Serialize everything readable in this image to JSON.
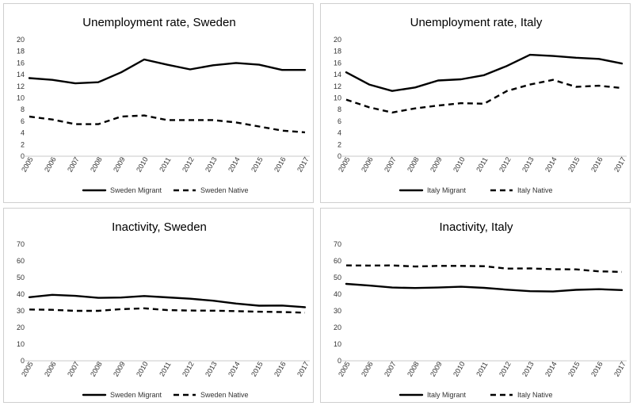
{
  "chart_data": [
    {
      "type": "line",
      "title": "Unemployment rate, Sweden",
      "x": [
        "2005",
        "2006",
        "2007",
        "2008",
        "2009",
        "2010",
        "2011",
        "2012",
        "2013",
        "2014",
        "2015",
        "2016",
        "2017"
      ],
      "ylim": [
        0,
        20
      ],
      "yticks": [
        0,
        2,
        4,
        6,
        8,
        10,
        12,
        14,
        16,
        18,
        20
      ],
      "grid": false,
      "legend": "bottom",
      "series": [
        {
          "name": "Sweden Migrant",
          "style": "solid",
          "values": [
            13.4,
            13.1,
            12.5,
            12.7,
            14.4,
            16.6,
            15.7,
            14.9,
            15.6,
            16.0,
            15.7,
            14.8,
            14.8
          ]
        },
        {
          "name": "Sweden Native",
          "style": "dashed",
          "values": [
            6.8,
            6.3,
            5.5,
            5.5,
            6.8,
            7.0,
            6.2,
            6.2,
            6.2,
            5.8,
            5.1,
            4.4,
            4.1
          ]
        }
      ]
    },
    {
      "type": "line",
      "title": "Unemployment rate, Italy",
      "x": [
        "2005",
        "2006",
        "2007",
        "2008",
        "2009",
        "2010",
        "2011",
        "2012",
        "2013",
        "2014",
        "2015",
        "2016",
        "2017"
      ],
      "ylim": [
        0,
        20
      ],
      "yticks": [
        0,
        2,
        4,
        6,
        8,
        10,
        12,
        14,
        16,
        18,
        20
      ],
      "grid": false,
      "legend": "bottom",
      "series": [
        {
          "name": "Italy Migrant",
          "style": "solid",
          "values": [
            14.4,
            12.3,
            11.2,
            11.8,
            13.0,
            13.2,
            13.9,
            15.5,
            17.4,
            17.2,
            16.9,
            16.7,
            15.9
          ]
        },
        {
          "name": "Italy Native",
          "style": "dashed",
          "values": [
            9.7,
            8.4,
            7.5,
            8.2,
            8.7,
            9.1,
            9.0,
            11.2,
            12.3,
            13.1,
            11.9,
            12.1,
            11.7
          ]
        }
      ]
    },
    {
      "type": "line",
      "title": "Inactivity, Sweden",
      "x": [
        "2005",
        "2006",
        "2007",
        "2008",
        "2009",
        "2010",
        "2011",
        "2012",
        "2013",
        "2014",
        "2015",
        "2016",
        "2017"
      ],
      "ylim": [
        0,
        70
      ],
      "yticks": [
        0,
        10,
        20,
        30,
        40,
        50,
        60,
        70
      ],
      "grid": false,
      "legend": "bottom",
      "series": [
        {
          "name": "Sweden Migrant",
          "style": "solid",
          "values": [
            38.2,
            39.6,
            39.0,
            37.8,
            38.0,
            38.9,
            38.1,
            37.3,
            36.1,
            34.4,
            33.1,
            33.2,
            32.2
          ]
        },
        {
          "name": "Sweden Native",
          "style": "dashed",
          "values": [
            30.8,
            30.6,
            30.0,
            30.0,
            31.0,
            31.5,
            30.5,
            30.2,
            30.1,
            29.8,
            29.5,
            29.3,
            28.9
          ]
        }
      ]
    },
    {
      "type": "line",
      "title": "Inactivity, Italy",
      "x": [
        "2005",
        "2006",
        "2007",
        "2008",
        "2009",
        "2010",
        "2011",
        "2012",
        "2013",
        "2014",
        "2015",
        "2016",
        "2017"
      ],
      "ylim": [
        0,
        70
      ],
      "yticks": [
        0,
        10,
        20,
        30,
        40,
        50,
        60,
        70
      ],
      "grid": false,
      "legend": "bottom",
      "series": [
        {
          "name": "Italy Migrant",
          "style": "solid",
          "values": [
            46.2,
            45.2,
            44.0,
            43.7,
            44.0,
            44.5,
            43.8,
            42.7,
            41.8,
            41.6,
            42.6,
            43.0,
            42.5
          ]
        },
        {
          "name": "Italy Native",
          "style": "dashed",
          "values": [
            57.3,
            57.2,
            57.3,
            56.6,
            57.0,
            57.0,
            56.8,
            55.4,
            55.5,
            55.0,
            54.9,
            53.7,
            53.4
          ]
        }
      ]
    }
  ]
}
